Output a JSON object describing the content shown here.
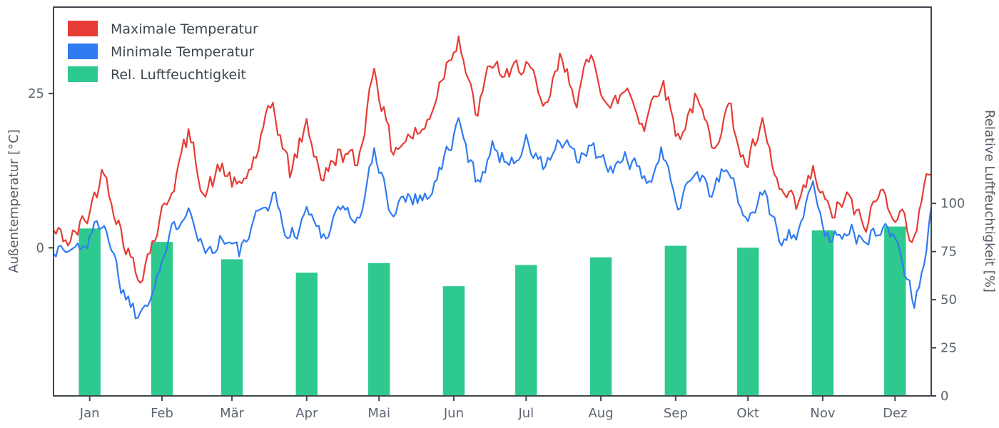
{
  "chart_data": {
    "type": "line+bar",
    "title": "",
    "grid": false,
    "legend_position": "upper left",
    "x_axis": {
      "tick_labels": [
        "Jan",
        "Feb",
        "Mär",
        "Apr",
        "Mai",
        "Jun",
        "Jul",
        "Aug",
        "Sep",
        "Okt",
        "Nov",
        "Dez"
      ],
      "mid_month_days": [
        15,
        45,
        74,
        105,
        135,
        166,
        196,
        227,
        258,
        288,
        319,
        349
      ],
      "xlim": [
        0,
        364
      ],
      "anchor_interval_days": 7,
      "bar_width_days": 9
    },
    "left_axis": {
      "label": "Außentemperatur [°C]",
      "ticks": [
        0,
        25
      ],
      "ylim": [
        -24,
        39
      ]
    },
    "right_axis": {
      "label": "Relative Luftfeuchtigkeit [%]",
      "ticks": [
        0,
        25,
        50,
        75,
        100
      ],
      "ylim": [
        0,
        202
      ]
    },
    "series": [
      {
        "name": "Maximale Temperatur",
        "type": "line",
        "axis": "left",
        "color": "#e63c35",
        "anchor_values": [
          2.5,
          1,
          5,
          13,
          3,
          -5,
          2,
          10,
          18,
          9,
          13,
          9,
          15,
          23,
          12,
          20,
          11,
          16,
          13,
          30,
          16,
          18,
          19,
          28,
          35,
          21,
          30,
          27,
          31,
          21,
          30,
          25,
          31,
          22,
          26,
          20,
          28,
          18,
          24,
          17,
          23,
          13,
          19,
          9,
          6,
          12,
          5,
          8,
          3,
          9,
          6,
          2,
          13
        ]
      },
      {
        "name": "Minimale Temperatur",
        "type": "line",
        "axis": "left",
        "color": "#2f7bf2",
        "anchor_values": [
          0,
          -0.5,
          1,
          5,
          -6,
          -11,
          -5,
          2,
          8,
          -1,
          2,
          -1,
          4,
          9,
          1,
          6,
          2,
          7,
          4,
          15,
          6,
          9,
          8,
          13,
          20,
          11,
          16,
          14,
          17,
          13,
          17,
          14,
          16,
          12,
          15,
          10,
          15,
          8,
          13,
          9,
          13,
          4,
          9,
          2,
          3,
          9,
          1,
          4,
          0,
          4,
          1,
          -9,
          5
        ]
      },
      {
        "name": "Rel. Luftfeuchtigkeit",
        "type": "bar",
        "axis": "right",
        "color": "#2dc98e",
        "categories": [
          "Jan",
          "Feb",
          "Mär",
          "Apr",
          "Mai",
          "Jun",
          "Jul",
          "Aug",
          "Sep",
          "Okt",
          "Nov",
          "Dez"
        ],
        "values": [
          87,
          80,
          71,
          64,
          69,
          57,
          68,
          72,
          78,
          77,
          86,
          88
        ]
      }
    ]
  }
}
